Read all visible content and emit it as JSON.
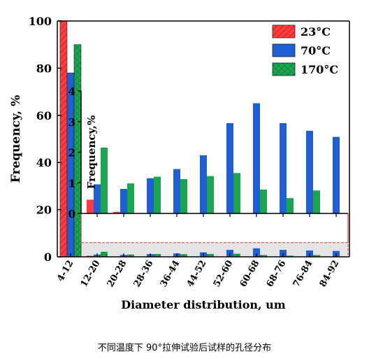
{
  "chart_data": {
    "type": "bar",
    "categories": [
      "4-12",
      "12-20",
      "20-28",
      "28-36",
      "36-44",
      "44-52",
      "52-60",
      "60-68",
      "68-76",
      "76-84",
      "84-92"
    ],
    "series": [
      {
        "name": "23°C",
        "values": [
          100,
          0.45,
          0.05,
          0,
          0,
          0,
          0,
          0,
          0,
          0,
          0
        ],
        "color": "#ff3b3b",
        "pattern": "diagonal-hatch"
      },
      {
        "name": "70°C",
        "values": [
          78,
          0.95,
          0.8,
          1.15,
          1.45,
          1.9,
          2.95,
          3.6,
          2.95,
          2.7,
          2.5
        ],
        "color": "#1f5fd6",
        "pattern": "solid"
      },
      {
        "name": "170°C",
        "values": [
          90,
          2.15,
          0.98,
          1.2,
          1.12,
          1.22,
          1.32,
          0.78,
          0.5,
          0.75,
          0
        ],
        "color": "#1aa64f",
        "pattern": "cross-hatch"
      }
    ],
    "xlabel": "Diameter distribution, um",
    "ylabel": "Frequency, %",
    "ylim": [
      0,
      100
    ],
    "yticks": [
      0,
      20,
      40,
      60,
      80,
      100
    ],
    "inset": {
      "ylabel": "Frequency,%",
      "ylim": [
        0,
        4
      ],
      "yticks": [
        0,
        1,
        2,
        3,
        4
      ],
      "categories_range": [
        "12-20",
        "84-92"
      ]
    },
    "legend_position": "top-right",
    "grid": false
  },
  "caption": "不同温度下 90°拉伸试验后试样的孔径分布"
}
